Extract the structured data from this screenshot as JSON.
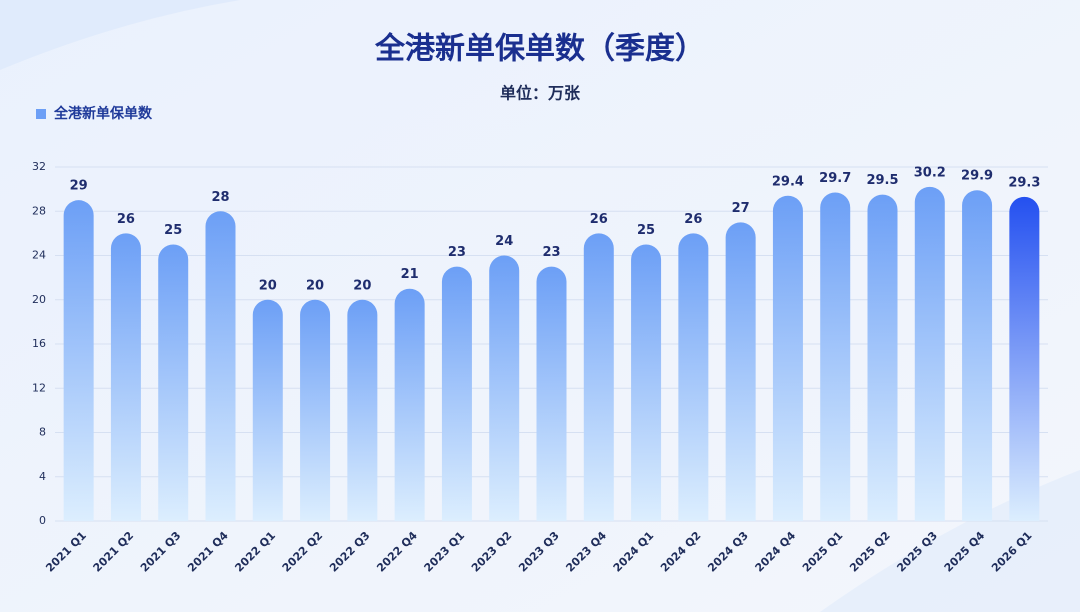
{
  "chart_data": {
    "type": "bar",
    "title": "全港新单保单数（季度）",
    "subtitle": "单位：万张",
    "categories": [
      "2021 Q1",
      "2021 Q2",
      "2021 Q3",
      "2021 Q4",
      "2022 Q1",
      "2022 Q2",
      "2022 Q3",
      "2022 Q4",
      "2023 Q1",
      "2023 Q2",
      "2023 Q3",
      "2023 Q4",
      "2024 Q1",
      "2024 Q2",
      "2024 Q3",
      "2024 Q4",
      "2025 Q1",
      "2025 Q2",
      "2025 Q3",
      "2025 Q4",
      "2026 Q1"
    ],
    "series": [
      {
        "name": "全港新单保单数",
        "color": "#6c9ff6",
        "values": [
          29,
          26,
          25,
          28,
          20,
          20,
          20,
          21,
          23,
          24,
          23,
          26,
          25,
          26,
          27,
          29.4,
          29.7,
          29.5,
          30.2,
          29.9,
          29.3
        ],
        "colors": [
          "#6c9ff6",
          "#6c9ff6",
          "#6c9ff6",
          "#6c9ff6",
          "#6c9ff6",
          "#6c9ff6",
          "#6c9ff6",
          "#6c9ff6",
          "#6c9ff6",
          "#6c9ff6",
          "#6c9ff6",
          "#6c9ff6",
          "#6c9ff6",
          "#6c9ff6",
          "#6c9ff6",
          "#6c9ff6",
          "#6c9ff6",
          "#6c9ff6",
          "#6c9ff6",
          "#6c9ff6",
          "#2450f0"
        ]
      }
    ],
    "ylim": [
      0,
      32
    ],
    "yticks": [
      0,
      4,
      8,
      12,
      16,
      20,
      24,
      28,
      32
    ],
    "grid": true,
    "legend": "top-left"
  }
}
